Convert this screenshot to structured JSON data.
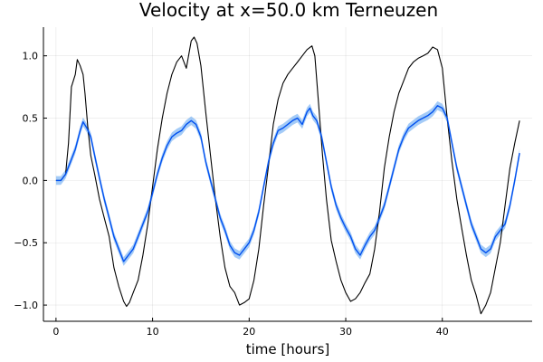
{
  "chart_data": {
    "type": "line",
    "title": "Velocity at x=50.0 km Terneuzen",
    "xlabel": "time [hours]",
    "ylabel": "",
    "xlim": [
      -1.3,
      49.3
    ],
    "ylim": [
      -1.13,
      1.23
    ],
    "xticks": [
      0,
      10,
      20,
      30,
      40
    ],
    "xtick_labels": [
      "0",
      "10",
      "20",
      "30",
      "40"
    ],
    "yticks": [
      -1.0,
      -0.5,
      0.0,
      0.5,
      1.0
    ],
    "ytick_labels": [
      "−1.0",
      "−0.5",
      "0.0",
      "0.5",
      "1.0"
    ],
    "grid": true,
    "legend": "none",
    "colors": {
      "observed": "#000000",
      "ensemble_mean": "#0050f0",
      "ensemble_band": "#5aa0f0"
    },
    "series": [
      {
        "color": "#000000",
        "x": [
          0,
          0.5,
          1,
          1.3,
          1.6,
          2,
          2.2,
          2.5,
          2.8,
          3,
          3.3,
          3.6,
          4,
          4.5,
          5,
          5.5,
          6,
          6.5,
          7,
          7.3,
          7.6,
          8,
          8.5,
          9,
          9.5,
          10,
          10.5,
          11,
          11.5,
          12,
          12.5,
          13,
          13.5,
          14,
          14.3,
          14.6,
          15,
          15.5,
          16,
          16.5,
          17,
          17.5,
          18,
          18.5,
          19,
          19.5,
          20,
          20.5,
          21,
          21.5,
          22,
          22.5,
          23,
          23.5,
          24,
          24.5,
          25,
          25.5,
          26,
          26.5,
          26.8,
          27.2,
          27.6,
          28,
          28.5,
          29,
          29.5,
          30,
          30.5,
          31,
          31.5,
          32,
          32.5,
          33,
          33.5,
          34,
          34.5,
          35,
          35.5,
          36,
          36.5,
          37,
          37.5,
          38,
          38.5,
          39,
          39.5,
          40,
          40.5,
          41,
          41.5,
          42,
          42.5,
          43,
          43.5,
          44,
          44.5,
          45,
          45.5,
          46,
          46.5,
          47,
          47.5,
          48
        ],
        "y": [
          0.0,
          0.0,
          0.05,
          0.3,
          0.75,
          0.85,
          0.97,
          0.92,
          0.85,
          0.7,
          0.42,
          0.2,
          0.05,
          -0.15,
          -0.3,
          -0.45,
          -0.7,
          -0.85,
          -0.97,
          -1.01,
          -0.98,
          -0.9,
          -0.8,
          -0.6,
          -0.35,
          -0.05,
          0.25,
          0.5,
          0.7,
          0.85,
          0.95,
          1.0,
          0.9,
          1.12,
          1.15,
          1.1,
          0.92,
          0.55,
          0.2,
          -0.15,
          -0.45,
          -0.7,
          -0.85,
          -0.9,
          -1.0,
          -0.98,
          -0.95,
          -0.8,
          -0.55,
          -0.2,
          0.12,
          0.45,
          0.65,
          0.78,
          0.85,
          0.9,
          0.95,
          1.0,
          1.05,
          1.08,
          1.0,
          0.6,
          0.2,
          -0.15,
          -0.48,
          -0.65,
          -0.8,
          -0.9,
          -0.97,
          -0.95,
          -0.9,
          -0.82,
          -0.75,
          -0.55,
          -0.25,
          0.1,
          0.35,
          0.55,
          0.7,
          0.8,
          0.9,
          0.95,
          0.98,
          1.0,
          1.02,
          1.07,
          1.05,
          0.9,
          0.5,
          0.15,
          -0.15,
          -0.38,
          -0.6,
          -0.8,
          -0.92,
          -1.07,
          -1.0,
          -0.9,
          -0.7,
          -0.5,
          -0.2,
          0.1,
          0.3,
          0.48
        ]
      },
      {
        "color": "#0050f0",
        "band_half_width": 0.035,
        "x": [
          0,
          0.5,
          1,
          1.5,
          2,
          2.5,
          2.8,
          3.2,
          3.6,
          4,
          4.5,
          5,
          5.5,
          6,
          6.5,
          7,
          7.5,
          8,
          8.5,
          9,
          9.5,
          10,
          10.5,
          11,
          11.5,
          12,
          12.5,
          13,
          13.5,
          14,
          14.5,
          15,
          15.5,
          16,
          16.5,
          17,
          17.5,
          18,
          18.5,
          19,
          19.5,
          20,
          20.5,
          21,
          21.5,
          22,
          22.5,
          23,
          23.5,
          24,
          24.5,
          25,
          25.5,
          26,
          26.3,
          26.6,
          27,
          27.5,
          28,
          28.5,
          29,
          29.5,
          30,
          30.5,
          31,
          31.5,
          32,
          32.5,
          33,
          33.5,
          34,
          34.5,
          35,
          35.5,
          36,
          36.5,
          37,
          37.5,
          38,
          38.5,
          39,
          39.5,
          40,
          40.5,
          41,
          41.5,
          42,
          42.5,
          43,
          43.5,
          44,
          44.5,
          45,
          45.5,
          46,
          46.5,
          47,
          47.5,
          48
        ],
        "y": [
          0.0,
          0.0,
          0.05,
          0.15,
          0.25,
          0.4,
          0.47,
          0.42,
          0.35,
          0.2,
          0.02,
          -0.15,
          -0.3,
          -0.45,
          -0.55,
          -0.65,
          -0.6,
          -0.55,
          -0.45,
          -0.35,
          -0.25,
          -0.1,
          0.05,
          0.18,
          0.28,
          0.35,
          0.38,
          0.4,
          0.45,
          0.48,
          0.45,
          0.35,
          0.15,
          0.0,
          -0.15,
          -0.3,
          -0.4,
          -0.52,
          -0.58,
          -0.6,
          -0.55,
          -0.5,
          -0.4,
          -0.25,
          -0.05,
          0.15,
          0.3,
          0.4,
          0.42,
          0.45,
          0.48,
          0.5,
          0.45,
          0.55,
          0.58,
          0.52,
          0.48,
          0.35,
          0.15,
          -0.05,
          -0.2,
          -0.3,
          -0.38,
          -0.45,
          -0.55,
          -0.6,
          -0.52,
          -0.45,
          -0.4,
          -0.3,
          -0.2,
          -0.05,
          0.1,
          0.25,
          0.35,
          0.42,
          0.45,
          0.48,
          0.5,
          0.52,
          0.55,
          0.6,
          0.58,
          0.5,
          0.3,
          0.1,
          -0.05,
          -0.2,
          -0.35,
          -0.45,
          -0.55,
          -0.58,
          -0.55,
          -0.45,
          -0.4,
          -0.35,
          -0.2,
          0.0,
          0.22
        ]
      }
    ]
  }
}
